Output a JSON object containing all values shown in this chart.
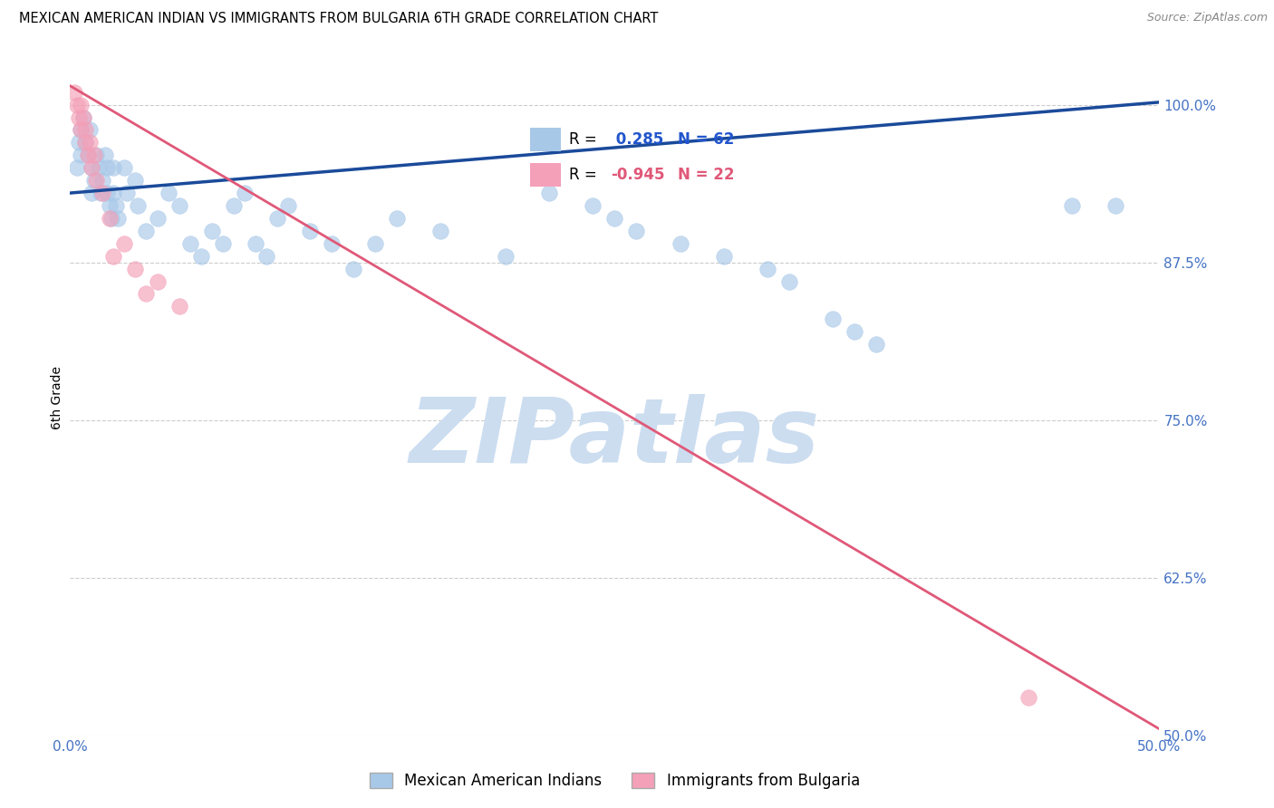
{
  "title": "MEXICAN AMERICAN INDIAN VS IMMIGRANTS FROM BULGARIA 6TH GRADE CORRELATION CHART",
  "source": "Source: ZipAtlas.com",
  "ylabel": "6th Grade",
  "xlim": [
    0.0,
    50.0
  ],
  "ylim": [
    50.0,
    103.5
  ],
  "yticks": [
    50.0,
    62.5,
    75.0,
    87.5,
    100.0
  ],
  "xticks": [
    0.0,
    12.5,
    25.0,
    37.5,
    50.0
  ],
  "xtick_labels": [
    "0.0%",
    "",
    "",
    "",
    "50.0%"
  ],
  "ytick_labels": [
    "50.0%",
    "62.5%",
    "75.0%",
    "87.5%",
    "100.0%"
  ],
  "blue_R": 0.285,
  "blue_N": 62,
  "pink_R": -0.945,
  "pink_N": 22,
  "blue_color": "#a8c8e8",
  "pink_color": "#f4a0b8",
  "blue_line_color": "#1a4a9a",
  "pink_line_color": "#e05878",
  "legend_label_blue": "Mexican American Indians",
  "legend_label_pink": "Immigrants from Bulgaria",
  "watermark_color": "#ccddf0",
  "blue_x": [
    0.3,
    0.4,
    0.5,
    0.5,
    0.6,
    0.7,
    0.8,
    0.9,
    1.0,
    1.0,
    1.1,
    1.2,
    1.3,
    1.4,
    1.5,
    1.6,
    1.7,
    1.7,
    1.8,
    1.9,
    2.0,
    2.0,
    2.1,
    2.2,
    2.5,
    2.6,
    3.0,
    3.1,
    3.5,
    4.0,
    4.5,
    5.0,
    5.5,
    6.0,
    6.5,
    7.0,
    7.5,
    8.0,
    8.5,
    9.0,
    9.5,
    10.0,
    11.0,
    12.0,
    13.0,
    14.0,
    15.0,
    17.0,
    20.0,
    22.0,
    24.0,
    25.0,
    26.0,
    28.0,
    30.0,
    32.0,
    33.0,
    35.0,
    36.0,
    37.0,
    46.0,
    48.0
  ],
  "blue_y": [
    95,
    97,
    98,
    96,
    99,
    97,
    96,
    98,
    93,
    95,
    94,
    96,
    95,
    93,
    94,
    96,
    95,
    93,
    92,
    91,
    93,
    95,
    92,
    91,
    95,
    93,
    94,
    92,
    90,
    91,
    93,
    92,
    89,
    88,
    90,
    89,
    92,
    93,
    89,
    88,
    91,
    92,
    90,
    89,
    87,
    89,
    91,
    90,
    88,
    93,
    92,
    91,
    90,
    89,
    88,
    87,
    86,
    83,
    82,
    81,
    92,
    92
  ],
  "pink_x": [
    0.2,
    0.3,
    0.4,
    0.5,
    0.5,
    0.6,
    0.7,
    0.7,
    0.8,
    0.9,
    1.0,
    1.1,
    1.2,
    1.5,
    1.8,
    2.0,
    2.5,
    3.0,
    3.5,
    4.0,
    5.0,
    44.0
  ],
  "pink_y": [
    101,
    100,
    99,
    100,
    98,
    99,
    98,
    97,
    96,
    97,
    95,
    96,
    94,
    93,
    91,
    88,
    89,
    87,
    85,
    86,
    84,
    53
  ],
  "blue_line_x0": 0.0,
  "blue_line_y0": 93.0,
  "blue_line_x1": 50.0,
  "blue_line_y1": 100.2,
  "pink_line_x0": 0.0,
  "pink_line_y0": 101.5,
  "pink_line_x1": 50.0,
  "pink_line_y1": 50.5
}
